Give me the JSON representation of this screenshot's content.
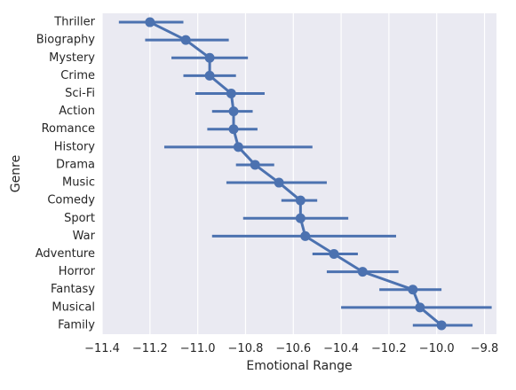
{
  "chart_data": {
    "type": "pointplot",
    "title": "",
    "xlabel": "Emotional Range",
    "ylabel": "Genre",
    "xlim": [
      -11.4,
      -9.75
    ],
    "xticks": [
      -11.4,
      -11.2,
      -11.0,
      -10.8,
      -10.6,
      -10.4,
      -10.2,
      -10.0,
      -9.8
    ],
    "xtick_labels": [
      "−11.4",
      "−11.2",
      "−11.0",
      "−10.8",
      "−10.6",
      "−10.4",
      "−10.2",
      "−10.0",
      "−9.8"
    ],
    "categories": [
      "Thriller",
      "Biography",
      "Mystery",
      "Crime",
      "Sci-Fi",
      "Action",
      "Romance",
      "History",
      "Drama",
      "Music",
      "Comedy",
      "Sport",
      "War",
      "Adventure",
      "Horror",
      "Fantasy",
      "Musical",
      "Family"
    ],
    "values": [
      -11.2,
      -11.05,
      -10.95,
      -10.95,
      -10.86,
      -10.85,
      -10.85,
      -10.83,
      -10.76,
      -10.66,
      -10.57,
      -10.57,
      -10.55,
      -10.43,
      -10.31,
      -10.1,
      -10.07,
      -9.98
    ],
    "ci_low": [
      -11.33,
      -11.22,
      -11.11,
      -11.06,
      -11.01,
      -10.94,
      -10.96,
      -11.14,
      -10.84,
      -10.88,
      -10.65,
      -10.81,
      -10.94,
      -10.52,
      -10.46,
      -10.24,
      -10.4,
      -10.1
    ],
    "ci_high": [
      -11.06,
      -10.87,
      -10.79,
      -10.84,
      -10.72,
      -10.77,
      -10.75,
      -10.52,
      -10.68,
      -10.46,
      -10.5,
      -10.37,
      -10.17,
      -10.33,
      -10.16,
      -9.98,
      -9.77,
      -9.85
    ],
    "color": "#4c72b0",
    "background": "#eaeaf2",
    "grid": true
  }
}
